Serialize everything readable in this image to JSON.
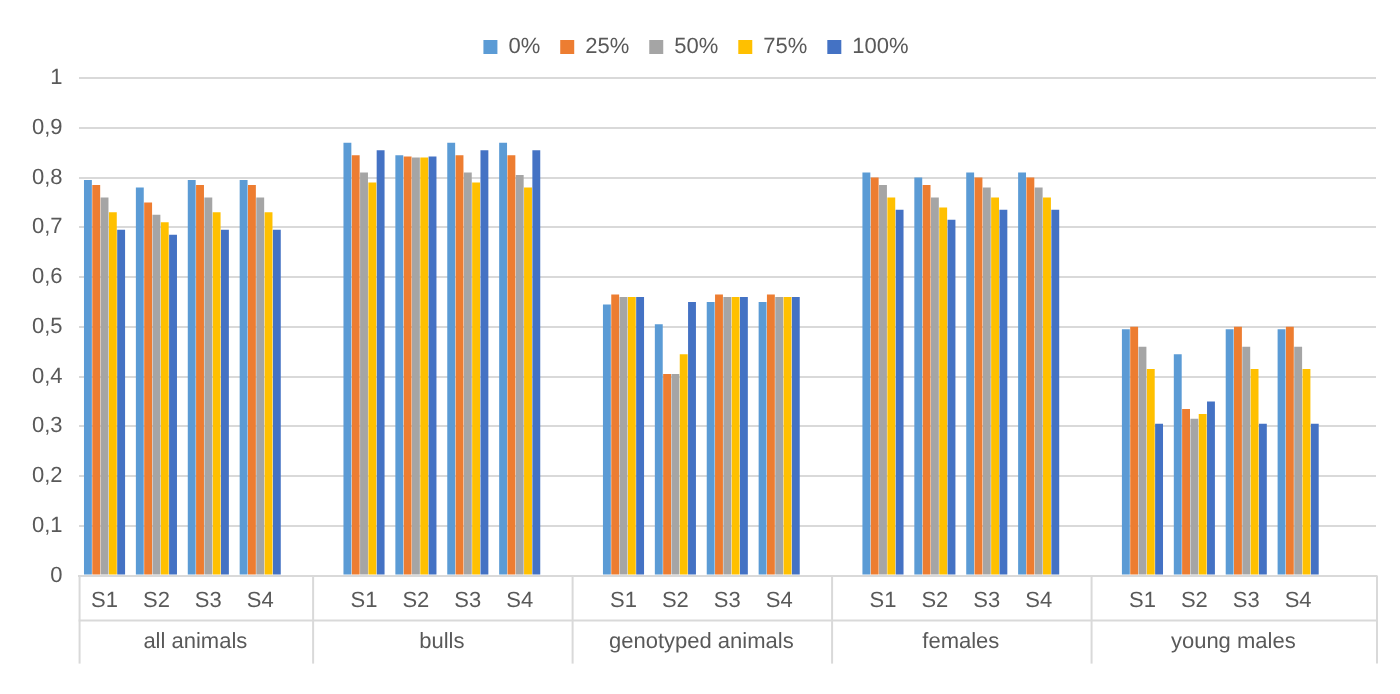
{
  "chart_data": {
    "type": "bar",
    "categories": [
      "S1",
      "S2",
      "S3",
      "S4",
      null,
      "S1",
      "S2",
      "S3",
      "S4",
      null,
      "S1",
      "S2",
      "S3",
      "S4",
      null,
      "S1",
      "S2",
      "S3",
      "S4",
      null,
      "S1",
      "S2",
      "S3",
      "S4",
      null
    ],
    "series": [
      {
        "name": "0%",
        "color": "#5b9bd5",
        "values": [
          0.795,
          0.78,
          0.795,
          0.795,
          null,
          0.87,
          0.845,
          0.87,
          0.87,
          null,
          0.545,
          0.505,
          0.55,
          0.55,
          null,
          0.81,
          0.8,
          0.81,
          0.81,
          null,
          0.495,
          0.445,
          0.495,
          0.495,
          null
        ]
      },
      {
        "name": "25%",
        "color": "#ed7d31",
        "values": [
          0.785,
          0.75,
          0.785,
          0.785,
          null,
          0.845,
          0.842,
          0.845,
          0.845,
          null,
          0.565,
          0.405,
          0.565,
          0.565,
          null,
          0.8,
          0.785,
          0.8,
          0.8,
          null,
          0.5,
          0.335,
          0.5,
          0.5,
          null
        ]
      },
      {
        "name": "50%",
        "color": "#a5a5a5",
        "values": [
          0.76,
          0.725,
          0.76,
          0.76,
          null,
          0.81,
          0.84,
          0.81,
          0.805,
          null,
          0.56,
          0.405,
          0.56,
          0.56,
          null,
          0.785,
          0.76,
          0.78,
          0.78,
          null,
          0.46,
          0.315,
          0.46,
          0.46,
          null
        ]
      },
      {
        "name": "75%",
        "color": "#ffc000",
        "values": [
          0.73,
          0.71,
          0.73,
          0.73,
          null,
          0.79,
          0.84,
          0.79,
          0.78,
          null,
          0.56,
          0.445,
          0.56,
          0.56,
          null,
          0.76,
          0.74,
          0.76,
          0.76,
          null,
          0.415,
          0.325,
          0.415,
          0.415,
          null
        ]
      },
      {
        "name": "100%",
        "color": "#4472c4",
        "values": [
          0.695,
          0.685,
          0.695,
          0.695,
          null,
          0.855,
          0.842,
          0.855,
          0.855,
          null,
          0.56,
          0.55,
          0.56,
          0.56,
          null,
          0.735,
          0.715,
          0.735,
          0.735,
          null,
          0.305,
          0.35,
          0.305,
          0.305,
          null
        ]
      }
    ],
    "ylim": [
      0,
      1
    ],
    "yticks": [
      0,
      {
        "value": 0.1,
        "label": "0,1"
      },
      {
        "value": 0.2,
        "label": "0,2"
      },
      {
        "value": 0.3,
        "label": "0,3"
      },
      {
        "value": 0.4,
        "label": "0,4"
      },
      {
        "value": 0.5,
        "label": "0,5"
      },
      {
        "value": 0.6,
        "label": "0,6"
      },
      {
        "value": 0.7,
        "label": "0,7"
      },
      {
        "value": 0.8,
        "label": "0,8"
      },
      {
        "value": 0.9,
        "label": "0,9"
      },
      1
    ],
    "grid": "y",
    "legend": "top",
    "annotations": [
      "all animals",
      "bulls",
      "genotyped animals",
      "females",
      "young males"
    ]
  }
}
